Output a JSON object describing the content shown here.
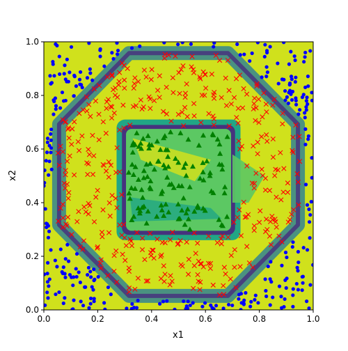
{
  "chart_data": {
    "type": "scatter",
    "title": "",
    "xlabel": "x1",
    "ylabel": "x2",
    "xlim": [
      0,
      1
    ],
    "ylim": [
      0,
      1
    ],
    "xticks": [
      "0.0",
      "0.2",
      "0.4",
      "0.6",
      "0.8",
      "1.0"
    ],
    "yticks": [
      "0.0",
      "0.2",
      "0.4",
      "0.6",
      "0.8",
      "1.0"
    ],
    "grid": false,
    "legend": "none",
    "background": "decision-region contour (classifier output)",
    "regions": [
      {
        "label": "outer ring boundary",
        "shape": "octagon",
        "x": [
          0.06,
          0.94
        ],
        "y": [
          0.06,
          0.95
        ],
        "color": "#3b8a8c"
      },
      {
        "label": "inner square boundary",
        "shape": "square",
        "x": [
          0.28,
          0.72
        ],
        "y": [
          0.27,
          0.7
        ],
        "color": "#3e5e8e"
      },
      {
        "label": "inner high region",
        "shape": "square",
        "x": [
          0.31,
          0.68
        ],
        "y": [
          0.3,
          0.67
        ],
        "color": "#5cc863"
      }
    ],
    "series": [
      {
        "marker": "dot",
        "color": "#0000ff",
        "n": 300
      },
      {
        "marker": "x",
        "color": "#ff0000",
        "n": 380
      },
      {
        "marker": "triangle",
        "color": "#008000",
        "n": 120
      }
    ],
    "colors": {
      "fill_bg": "#d0e11c",
      "ring": "#3b8a8c",
      "ring_dark": "#46327e",
      "inner": "#5cc863",
      "inner_mid": "#21a685"
    }
  }
}
